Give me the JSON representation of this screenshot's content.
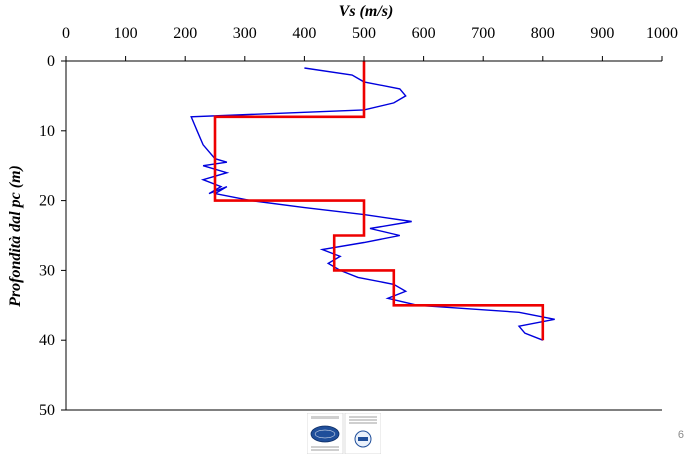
{
  "page_number": "6",
  "certification": {
    "left_logo_text": "UNI EN ISO 9001:2008",
    "left_badge_text": "CERTIQUALITY",
    "left_caption": "SISTEMA DI GESTIONE QUALITÀ CERTIFICATO",
    "right_logo_text": "CERTIQUALITY",
    "right_badge_text": "IQNET"
  },
  "chart_data": {
    "type": "line",
    "title": "",
    "xlabel": "Vs (m/s)",
    "ylabel": "Profondità dal pc (m)",
    "x_axis_position": "top",
    "y_inverted": true,
    "xlim": [
      0,
      1000
    ],
    "ylim": [
      0,
      50
    ],
    "x_ticks": [
      0,
      100,
      200,
      300,
      400,
      500,
      600,
      700,
      800,
      900,
      1000
    ],
    "y_ticks": [
      0,
      10,
      20,
      30,
      40,
      50
    ],
    "grid": false,
    "legend": "none",
    "series": [
      {
        "color": "#0000dd",
        "points": [
          [
            400,
            1
          ],
          [
            480,
            2
          ],
          [
            500,
            3
          ],
          [
            560,
            4
          ],
          [
            570,
            5
          ],
          [
            550,
            6
          ],
          [
            500,
            7
          ],
          [
            210,
            8
          ],
          [
            220,
            10
          ],
          [
            230,
            12
          ],
          [
            250,
            14
          ],
          [
            270,
            14.5
          ],
          [
            230,
            15
          ],
          [
            270,
            16
          ],
          [
            230,
            17
          ],
          [
            260,
            18
          ],
          [
            240,
            19
          ],
          [
            270,
            18
          ],
          [
            250,
            19
          ],
          [
            310,
            20
          ],
          [
            400,
            21
          ],
          [
            500,
            22
          ],
          [
            580,
            23
          ],
          [
            510,
            24
          ],
          [
            560,
            25
          ],
          [
            500,
            26
          ],
          [
            430,
            27
          ],
          [
            460,
            28
          ],
          [
            440,
            29
          ],
          [
            460,
            30
          ],
          [
            490,
            31
          ],
          [
            550,
            32
          ],
          [
            570,
            33
          ],
          [
            540,
            34
          ],
          [
            590,
            35
          ],
          [
            760,
            36
          ],
          [
            820,
            37
          ],
          [
            760,
            38
          ],
          [
            770,
            39
          ],
          [
            800,
            40
          ]
        ]
      },
      {
        "color": "#ee0000",
        "points": [
          [
            500,
            0
          ],
          [
            500,
            8
          ],
          [
            250,
            8
          ],
          [
            250,
            20
          ],
          [
            500,
            20
          ],
          [
            500,
            25
          ],
          [
            450,
            25
          ],
          [
            450,
            30
          ],
          [
            550,
            30
          ],
          [
            550,
            35
          ],
          [
            800,
            35
          ],
          [
            800,
            40
          ]
        ]
      }
    ]
  }
}
